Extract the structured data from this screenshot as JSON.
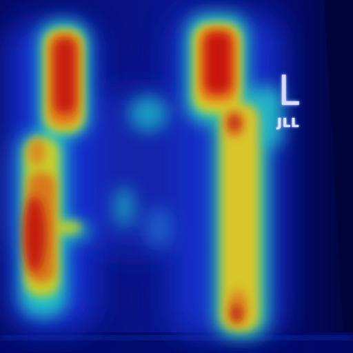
{
  "image": {
    "kind": "heatmap overlay on radiograph",
    "colormap": "jet",
    "background_color": "#01064a"
  },
  "marker": {
    "letter": "L",
    "code": "JLL"
  },
  "colors": {
    "low": "#0a1a9a",
    "mid_low": "#1fb6c8",
    "mid": "#d6d22a",
    "high": "#d51a0e"
  }
}
